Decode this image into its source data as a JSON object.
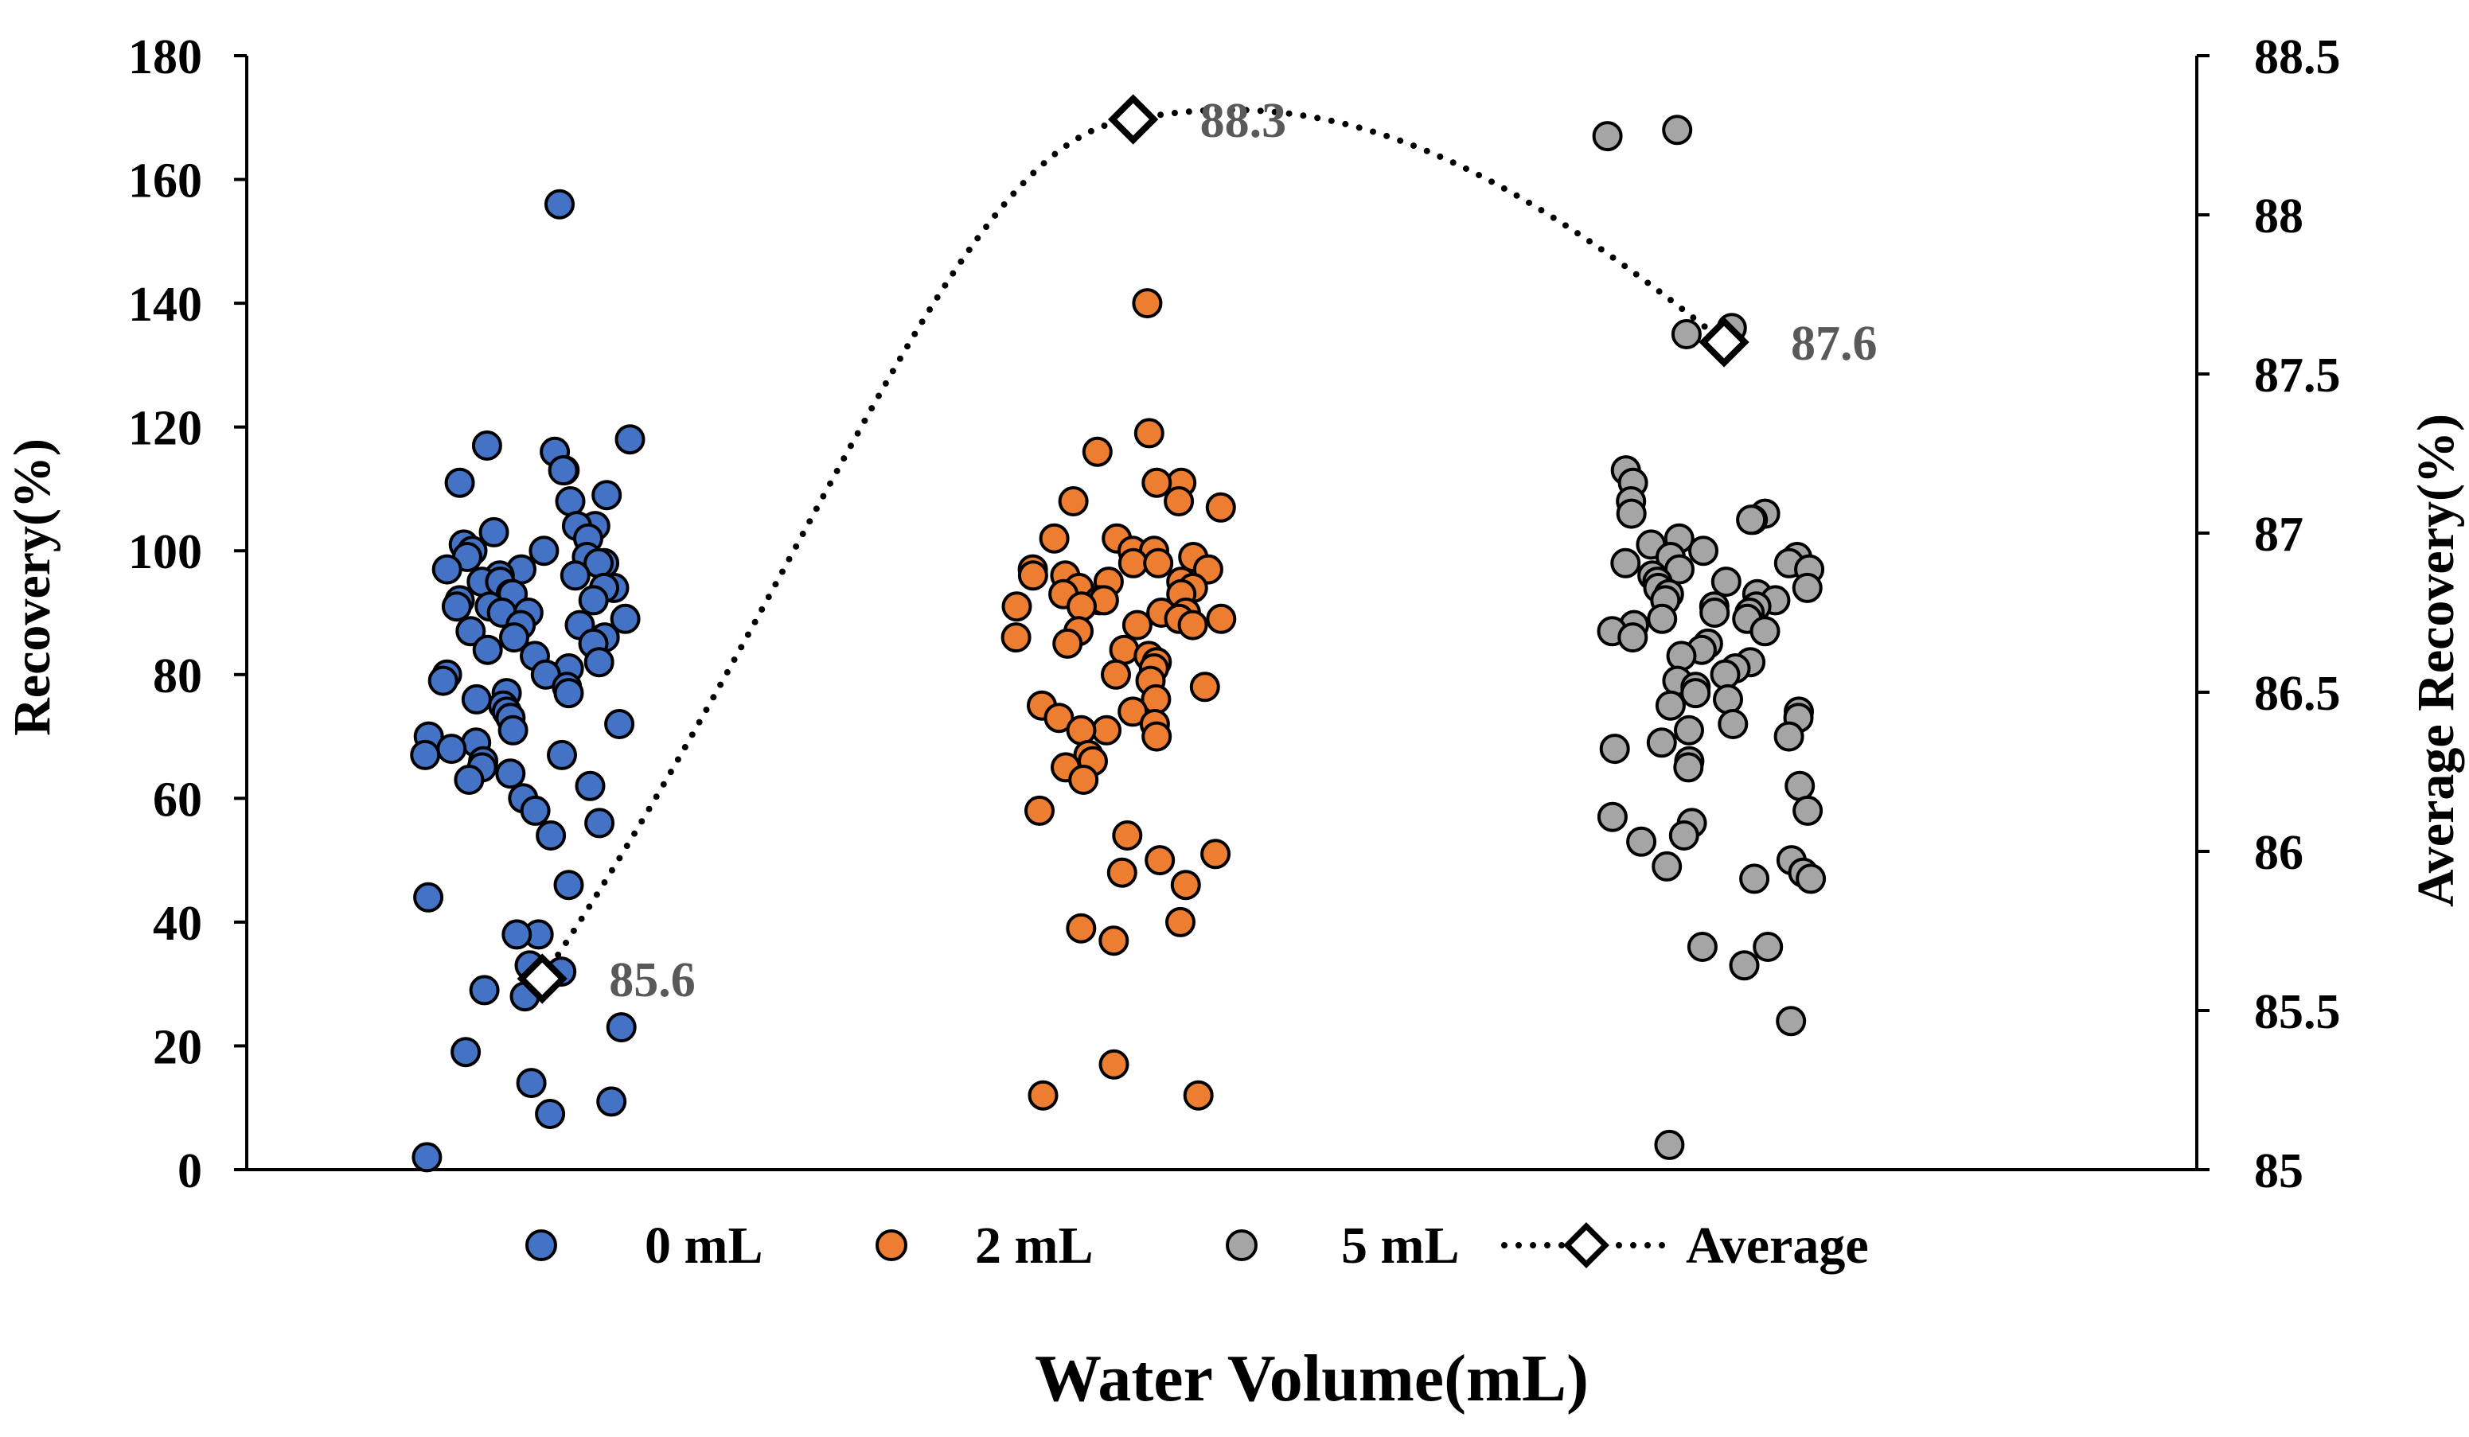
{
  "chart_data": {
    "type": "scatter",
    "xlabel": "Water Volume(mL)",
    "ylabel": "Recovery(%)",
    "y2label": "Average Recovery(%)",
    "ylim": [
      0,
      180
    ],
    "y2lim": [
      85,
      88.5
    ],
    "yticks": [
      "0",
      "20",
      "40",
      "60",
      "80",
      "100",
      "120",
      "140",
      "160",
      "180"
    ],
    "y2ticks": [
      "85",
      "85.5",
      "86",
      "86.5",
      "87",
      "87.5",
      "88",
      "88.5"
    ],
    "grid": false,
    "legend_position": "bottom",
    "colors": {
      "0 mL": "#4472C4",
      "2 mL": "#ED7D31",
      "5 mL": "#A5A5A5",
      "Average": "#000000",
      "annotation": "#595959"
    },
    "series": [
      {
        "name": "0 mL",
        "marker": "circle",
        "x_range": [
          0.3,
          0.65
        ],
        "values": [
          156,
          117,
          116,
          118,
          113,
          113,
          111,
          109,
          108,
          104,
          104,
          103,
          102,
          101,
          100,
          100,
          99,
          99,
          98,
          98,
          97,
          97,
          96,
          96,
          95,
          95,
          94,
          94,
          93,
          93,
          92,
          92,
          91,
          91,
          90,
          90,
          89,
          88,
          88,
          87,
          86,
          86,
          85,
          84,
          83,
          82,
          81,
          80,
          80,
          79,
          78,
          77,
          77,
          76,
          75,
          74,
          73,
          72,
          71,
          70,
          69,
          68,
          67,
          67,
          66,
          65,
          64,
          63,
          62,
          60,
          58,
          56,
          54,
          46,
          44,
          38,
          38,
          33,
          32,
          29,
          28,
          23,
          19,
          14,
          11,
          9,
          2
        ]
      },
      {
        "name": "2 mL",
        "marker": "circle",
        "x_range": [
          1.3,
          1.65
        ],
        "values": [
          140,
          119,
          116,
          111,
          111,
          108,
          108,
          107,
          102,
          102,
          100,
          100,
          99,
          98,
          98,
          97,
          97,
          96,
          96,
          95,
          95,
          94,
          94,
          93,
          93,
          92,
          92,
          91,
          91,
          90,
          90,
          89,
          89,
          88,
          88,
          87,
          86,
          85,
          84,
          83,
          82,
          81,
          80,
          79,
          78,
          76,
          75,
          74,
          73,
          72,
          71,
          71,
          70,
          67,
          66,
          65,
          63,
          58,
          54,
          51,
          50,
          48,
          46,
          40,
          39,
          37,
          17,
          12,
          12
        ]
      },
      {
        "name": "5 mL",
        "marker": "circle",
        "x_range": [
          2.3,
          2.65
        ],
        "values": [
          168,
          167,
          136,
          135,
          113,
          111,
          108,
          106,
          106,
          105,
          105,
          102,
          101,
          100,
          99,
          99,
          98,
          98,
          97,
          97,
          96,
          95,
          95,
          94,
          94,
          93,
          93,
          92,
          92,
          91,
          91,
          90,
          90,
          89,
          89,
          88,
          87,
          87,
          86,
          85,
          84,
          83,
          82,
          81,
          80,
          79,
          78,
          77,
          76,
          75,
          74,
          73,
          72,
          71,
          70,
          69,
          68,
          66,
          65,
          62,
          58,
          57,
          56,
          54,
          53,
          50,
          49,
          48,
          47,
          47,
          36,
          36,
          33,
          24,
          4
        ]
      },
      {
        "name": "Average",
        "marker": "diamond",
        "line": "dotted",
        "axis": "secondary",
        "x": [
          0.5,
          1.5,
          2.5
        ],
        "values": [
          85.6,
          88.3,
          87.6
        ],
        "labels": [
          "85.6",
          "88.3",
          "87.6"
        ]
      }
    ]
  }
}
